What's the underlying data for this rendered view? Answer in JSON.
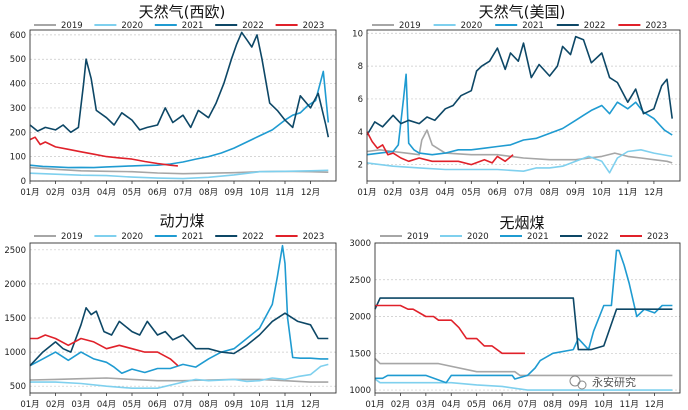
{
  "colors": {
    "2019": "#a6a6a6",
    "2020": "#7fd0ee",
    "2021": "#1f9bd1",
    "2022": "#0d4766",
    "2023": "#e0212a"
  },
  "watermark": {
    "text": "永安研究",
    "icon": "wechat-icon"
  },
  "chart_data": [
    {
      "type": "line",
      "title": "天然气(西欧)",
      "legend_position": "top",
      "months": [
        "01月",
        "02月",
        "03月",
        "04月",
        "05月",
        "06月",
        "07月",
        "08月",
        "09月",
        "10月",
        "11月",
        "12月"
      ],
      "ylim": [
        0,
        620
      ],
      "yticks": [
        0,
        100,
        200,
        300,
        400,
        500,
        600
      ],
      "grid": "horizontal",
      "series": [
        {
          "name": "2019",
          "color": "#a6a6a6",
          "x": [
            0,
            1,
            2,
            3,
            4,
            5,
            6,
            7,
            8,
            9,
            10,
            11,
            11.7
          ],
          "y": [
            55,
            48,
            42,
            40,
            38,
            33,
            30,
            32,
            34,
            38,
            40,
            38,
            36
          ]
        },
        {
          "name": "2020",
          "color": "#7fd0ee",
          "x": [
            0,
            1,
            2,
            3,
            4,
            5,
            6,
            7,
            8,
            9,
            10,
            11,
            11.7
          ],
          "y": [
            32,
            28,
            24,
            22,
            16,
            12,
            10,
            15,
            25,
            38,
            40,
            42,
            44
          ]
        },
        {
          "name": "2021",
          "color": "#1f9bd1",
          "x": [
            0,
            0.5,
            1,
            1.5,
            2,
            2.5,
            3,
            3.5,
            4,
            4.5,
            5,
            5.5,
            6,
            6.5,
            7,
            7.5,
            8,
            8.5,
            9,
            9.5,
            10,
            10.3,
            10.6,
            10.9,
            11.2,
            11.5,
            11.7
          ],
          "y": [
            65,
            60,
            58,
            55,
            56,
            55,
            58,
            60,
            62,
            64,
            65,
            70,
            78,
            90,
            100,
            115,
            135,
            160,
            185,
            210,
            250,
            270,
            280,
            310,
            330,
            450,
            240
          ]
        },
        {
          "name": "2022",
          "color": "#0d4766",
          "x": [
            0,
            0.3,
            0.6,
            1,
            1.3,
            1.6,
            1.9,
            2.1,
            2.2,
            2.4,
            2.6,
            3,
            3.3,
            3.6,
            4,
            4.3,
            4.6,
            5,
            5.3,
            5.6,
            6,
            6.3,
            6.6,
            7,
            7.3,
            7.6,
            7.9,
            8.1,
            8.3,
            8.5,
            8.7,
            8.9,
            9.1,
            9.4,
            9.7,
            10,
            10.3,
            10.6,
            11,
            11.3,
            11.6,
            11.7
          ],
          "y": [
            230,
            205,
            220,
            210,
            230,
            200,
            220,
            400,
            500,
            420,
            290,
            260,
            230,
            280,
            250,
            210,
            220,
            230,
            300,
            240,
            270,
            220,
            290,
            260,
            320,
            400,
            500,
            560,
            610,
            580,
            550,
            600,
            500,
            320,
            290,
            250,
            220,
            350,
            300,
            360,
            230,
            180
          ]
        },
        {
          "name": "2023",
          "color": "#e0212a",
          "x": [
            0,
            0.2,
            0.4,
            0.6,
            1,
            1.5,
            2,
            2.5,
            3,
            3.5,
            4,
            4.5,
            5,
            5.5,
            5.8
          ],
          "y": [
            170,
            180,
            150,
            160,
            140,
            130,
            120,
            110,
            100,
            95,
            90,
            80,
            72,
            65,
            62
          ]
        }
      ]
    },
    {
      "type": "line",
      "title": "天然气(美国)",
      "legend_position": "top",
      "months": [
        "01月",
        "02月",
        "03月",
        "04月",
        "05月",
        "06月",
        "07月",
        "08月",
        "09月",
        "10月",
        "11月",
        "12月"
      ],
      "ylim": [
        1,
        10.2
      ],
      "yticks": [
        2,
        4,
        6,
        8,
        10
      ],
      "grid": "horizontal",
      "series": [
        {
          "name": "2019",
          "color": "#a6a6a6",
          "x": [
            0,
            0.5,
            1,
            1.5,
            2,
            2.1,
            2.3,
            2.5,
            2.8,
            3,
            4,
            5,
            6,
            7,
            8,
            9,
            9.5,
            10,
            10.5,
            11,
            11.5,
            11.7
          ],
          "y": [
            2.8,
            2.9,
            2.8,
            2.7,
            2.6,
            3.5,
            4.1,
            3.2,
            2.9,
            2.7,
            2.6,
            2.6,
            2.4,
            2.3,
            2.3,
            2.5,
            2.7,
            2.5,
            2.4,
            2.3,
            2.2,
            2.1
          ]
        },
        {
          "name": "2020",
          "color": "#7fd0ee",
          "x": [
            0,
            1,
            2,
            3,
            4,
            5,
            6,
            6.5,
            7,
            7.5,
            8,
            8.5,
            9,
            9.3,
            9.6,
            10,
            10.5,
            11,
            11.7
          ],
          "y": [
            2.1,
            1.9,
            1.8,
            1.7,
            1.7,
            1.7,
            1.6,
            1.8,
            1.8,
            1.9,
            2.2,
            2.5,
            2.2,
            1.5,
            2.4,
            2.8,
            2.9,
            2.7,
            2.5
          ]
        },
        {
          "name": "2021",
          "color": "#1f9bd1",
          "x": [
            0,
            0.5,
            1,
            1.2,
            1.4,
            1.5,
            1.6,
            1.8,
            2,
            2.5,
            3,
            3.5,
            4,
            4.5,
            5,
            5.5,
            6,
            6.5,
            7,
            7.5,
            8,
            8.3,
            8.6,
            9,
            9.3,
            9.6,
            10,
            10.3,
            10.6,
            11,
            11.4,
            11.7
          ],
          "y": [
            2.6,
            2.7,
            2.8,
            3.2,
            6.0,
            7.5,
            3.3,
            2.9,
            2.7,
            2.6,
            2.7,
            2.9,
            2.9,
            3.0,
            3.1,
            3.2,
            3.5,
            3.6,
            3.9,
            4.2,
            4.7,
            5.0,
            5.3,
            5.6,
            5.1,
            5.8,
            5.4,
            5.8,
            5.2,
            4.8,
            4.1,
            3.8
          ]
        },
        {
          "name": "2022",
          "color": "#0d4766",
          "x": [
            0,
            0.3,
            0.6,
            1,
            1.3,
            1.6,
            2,
            2.3,
            2.6,
            3,
            3.3,
            3.6,
            4,
            4.2,
            4.4,
            4.7,
            5,
            5.3,
            5.5,
            5.8,
            6,
            6.3,
            6.6,
            7,
            7.3,
            7.5,
            7.8,
            8,
            8.3,
            8.6,
            9,
            9.3,
            9.6,
            10,
            10.3,
            10.6,
            11,
            11.3,
            11.5,
            11.7
          ],
          "y": [
            3.8,
            4.6,
            4.3,
            5.0,
            4.5,
            4.7,
            4.5,
            4.9,
            4.7,
            5.4,
            5.6,
            6.2,
            6.5,
            7.7,
            8.0,
            8.3,
            9.1,
            7.8,
            8.8,
            8.3,
            9.4,
            7.3,
            8.1,
            7.4,
            8.0,
            9.2,
            8.7,
            9.8,
            9.6,
            8.2,
            8.8,
            7.3,
            7.0,
            5.8,
            6.6,
            5.1,
            5.4,
            6.8,
            7.2,
            4.8
          ]
        },
        {
          "name": "2023",
          "color": "#e0212a",
          "x": [
            0,
            0.2,
            0.4,
            0.6,
            0.8,
            1,
            1.3,
            1.6,
            2,
            2.5,
            3,
            3.5,
            4,
            4.5,
            4.8,
            5,
            5.3,
            5.6
          ],
          "y": [
            4.0,
            3.4,
            3.0,
            3.2,
            2.6,
            2.7,
            2.4,
            2.2,
            2.4,
            2.2,
            2.2,
            2.2,
            2.0,
            2.3,
            2.1,
            2.5,
            2.2,
            2.6
          ]
        }
      ]
    },
    {
      "type": "line",
      "title": "动力煤",
      "legend_position": "top",
      "months": [
        "01月",
        "02月",
        "03月",
        "04月",
        "05月",
        "06月",
        "07月",
        "08月",
        "09月",
        "10月",
        "11月",
        "12月"
      ],
      "ylim": [
        400,
        2600
      ],
      "yticks": [
        500,
        1000,
        1500,
        2000,
        2500
      ],
      "grid": "horizontal",
      "series": [
        {
          "name": "2019",
          "color": "#a6a6a6",
          "x": [
            0,
            1,
            2,
            3,
            4,
            5,
            6,
            7,
            8,
            9,
            10,
            11,
            11.7
          ],
          "y": [
            590,
            600,
            610,
            620,
            600,
            580,
            580,
            590,
            600,
            600,
            580,
            560,
            560
          ]
        },
        {
          "name": "2020",
          "color": "#7fd0ee",
          "x": [
            0,
            1,
            2,
            3,
            4,
            5,
            6,
            6.5,
            7,
            8,
            8.5,
            9,
            9.5,
            10,
            10.5,
            11,
            11.4,
            11.7
          ],
          "y": [
            560,
            560,
            540,
            500,
            470,
            470,
            560,
            600,
            580,
            600,
            570,
            580,
            620,
            600,
            640,
            670,
            790,
            820
          ]
        },
        {
          "name": "2021",
          "color": "#1f9bd1",
          "x": [
            0,
            0.5,
            1,
            1.5,
            2,
            2.5,
            3,
            3.3,
            3.6,
            4,
            4.5,
            5,
            5.5,
            6,
            6.5,
            7,
            7.5,
            8,
            8.5,
            9,
            9.5,
            9.7,
            9.9,
            10,
            10.1,
            10.3,
            10.6,
            11,
            11.4,
            11.7
          ],
          "y": [
            800,
            900,
            1000,
            880,
            1000,
            900,
            850,
            780,
            690,
            750,
            700,
            760,
            760,
            820,
            780,
            900,
            1000,
            1050,
            1200,
            1350,
            1700,
            2100,
            2560,
            2300,
            1500,
            920,
            910,
            910,
            900,
            900
          ]
        },
        {
          "name": "2022",
          "color": "#0d4766",
          "x": [
            0,
            0.5,
            1,
            1.3,
            1.6,
            2,
            2.2,
            2.4,
            2.6,
            2.9,
            3.2,
            3.5,
            4,
            4.3,
            4.6,
            5,
            5.3,
            5.6,
            6,
            6.5,
            7,
            7.5,
            8,
            8.5,
            9,
            9.5,
            10,
            10.5,
            11,
            11.3,
            11.7
          ],
          "y": [
            800,
            1000,
            1150,
            1050,
            1000,
            1400,
            1650,
            1550,
            1600,
            1300,
            1250,
            1450,
            1300,
            1250,
            1450,
            1250,
            1300,
            1180,
            1250,
            1050,
            1050,
            1000,
            980,
            1100,
            1250,
            1450,
            1570,
            1450,
            1400,
            1200,
            1200
          ]
        },
        {
          "name": "2023",
          "color": "#e0212a",
          "x": [
            0,
            0.3,
            0.6,
            1,
            1.5,
            2,
            2.5,
            3,
            3.5,
            4,
            4.5,
            5,
            5.5,
            5.8
          ],
          "y": [
            1200,
            1200,
            1250,
            1200,
            1100,
            1200,
            1150,
            1050,
            1100,
            1050,
            1000,
            1000,
            900,
            800
          ]
        }
      ]
    },
    {
      "type": "line",
      "title": "无烟煤",
      "legend_position": "top",
      "months": [
        "01月",
        "02月",
        "03月",
        "04月",
        "05月",
        "06月",
        "07月",
        "08月",
        "09月",
        "10月",
        "11月",
        "12月"
      ],
      "ylim": [
        960,
        3000
      ],
      "yticks": [
        1000,
        1500,
        2000,
        2500,
        3000
      ],
      "grid": "horizontal",
      "series": [
        {
          "name": "2019",
          "color": "#a6a6a6",
          "x": [
            0,
            0.2,
            2.5,
            4,
            5.5,
            5.7,
            7,
            8,
            9,
            10,
            11,
            11.7
          ],
          "y": [
            1430,
            1360,
            1360,
            1250,
            1250,
            1200,
            1200,
            1200,
            1200,
            1200,
            1200,
            1200
          ]
        },
        {
          "name": "2020",
          "color": "#7fd0ee",
          "x": [
            0,
            0.2,
            2,
            3,
            4,
            5,
            6,
            7,
            8,
            9,
            10,
            11,
            11.7
          ],
          "y": [
            1150,
            1100,
            1100,
            1100,
            1070,
            1050,
            1000,
            1000,
            1000,
            1000,
            1000,
            1000,
            1000
          ]
        },
        {
          "name": "2021",
          "color": "#1f9bd1",
          "x": [
            0,
            0.3,
            0.5,
            1,
            2,
            2.8,
            3,
            4,
            5,
            5.4,
            5.5,
            6,
            6.3,
            6.5,
            7,
            7.8,
            8,
            8.4,
            8.6,
            9,
            9.3,
            9.5,
            9.6,
            9.8,
            10,
            10.3,
            10.6,
            11,
            11.3,
            11.7
          ],
          "y": [
            1160,
            1160,
            1200,
            1200,
            1200,
            1100,
            1200,
            1200,
            1200,
            1200,
            1150,
            1200,
            1300,
            1400,
            1500,
            1550,
            1700,
            1550,
            1800,
            2150,
            2150,
            2900,
            2900,
            2700,
            2450,
            2000,
            2100,
            2050,
            2150,
            2150
          ]
        },
        {
          "name": "2022",
          "color": "#0d4766",
          "x": [
            0,
            0.2,
            0.5,
            1,
            2,
            3,
            4,
            5,
            6,
            7,
            7.8,
            8,
            8.5,
            9,
            9.5,
            10,
            11,
            11.7
          ],
          "y": [
            2100,
            2250,
            2250,
            2250,
            2250,
            2250,
            2250,
            2250,
            2250,
            2250,
            2250,
            1550,
            1550,
            1600,
            2100,
            2100,
            2100,
            2100
          ]
        },
        {
          "name": "2023",
          "color": "#e0212a",
          "x": [
            0,
            0.3,
            0.6,
            1,
            1.3,
            1.5,
            2,
            2.3,
            2.5,
            3,
            3.3,
            3.6,
            4,
            4.3,
            4.6,
            5,
            5.3,
            5.6,
            5.9
          ],
          "y": [
            2150,
            2150,
            2150,
            2150,
            2100,
            2100,
            2000,
            2000,
            1950,
            1950,
            1850,
            1700,
            1700,
            1600,
            1600,
            1500,
            1500,
            1500,
            1500
          ]
        }
      ]
    }
  ]
}
